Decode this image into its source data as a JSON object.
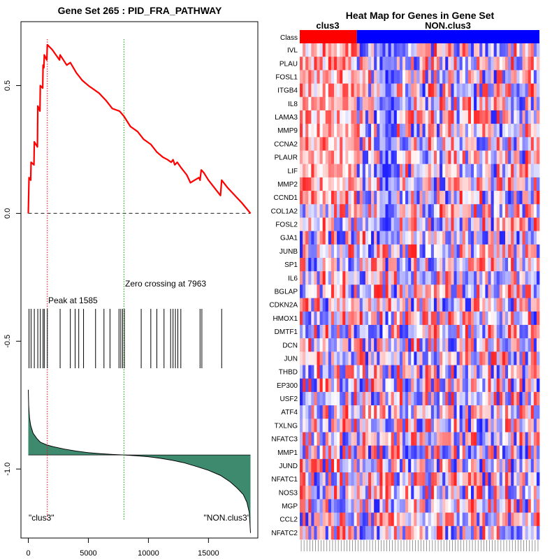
{
  "chart_data": [
    {
      "type": "line",
      "title": "Gene Set  265 : PID_FRA_PATHWAY",
      "xlim": [
        0,
        18500
      ],
      "ylim": [
        -1.27,
        0.75
      ],
      "x_ticks": [
        0,
        5000,
        10000,
        15000
      ],
      "x_tick_labels": [
        "0",
        "5000",
        "10000",
        "15000"
      ],
      "y_ticks": [
        0.5,
        0.0,
        -0.5,
        -1.0
      ],
      "y_tick_labels": [
        "0.5",
        "0.0",
        "-0.5",
        "-1.0"
      ],
      "running_es": {
        "x": [
          0,
          60,
          200,
          230,
          470,
          500,
          760,
          790,
          970,
          1000,
          1200,
          1230,
          1300,
          1330,
          1540,
          1585,
          2000,
          2600,
          2650,
          3200,
          3500,
          4000,
          4500,
          5000,
          5900,
          6500,
          7000,
          7600,
          7963,
          8500,
          9100,
          9600,
          10200,
          10700,
          11200,
          11600,
          11900,
          12050,
          12200,
          12400,
          12700,
          13200,
          13500,
          14200,
          14300,
          14400,
          14600,
          15000,
          15500,
          16000,
          16100,
          16600,
          17200,
          17800,
          18500
        ],
        "y": [
          0,
          0.14,
          0.13,
          0.2,
          0.19,
          0.28,
          0.26,
          0.42,
          0.4,
          0.5,
          0.49,
          0.58,
          0.57,
          0.62,
          0.6,
          0.66,
          0.64,
          0.6,
          0.62,
          0.58,
          0.59,
          0.55,
          0.52,
          0.5,
          0.47,
          0.44,
          0.41,
          0.4,
          0.38,
          0.34,
          0.32,
          0.29,
          0.27,
          0.24,
          0.22,
          0.21,
          0.2,
          0.21,
          0.19,
          0.2,
          0.18,
          0.15,
          0.12,
          0.14,
          0.13,
          0.17,
          0.16,
          0.13,
          0.1,
          0.07,
          0.13,
          0.1,
          0.07,
          0.04,
          0.0
        ]
      },
      "hit_positions": [
        60,
        230,
        500,
        790,
        1000,
        1230,
        1330,
        1585,
        2650,
        3500,
        3900,
        4200,
        4600,
        5600,
        6300,
        6800,
        7550,
        7700,
        7850,
        8000,
        9400,
        10200,
        10700,
        11300,
        11850,
        12050,
        12250,
        12450,
        12700,
        14300,
        14450,
        16100
      ],
      "ranked_metric_fill": "#3e8a6f",
      "ranked_metric": {
        "x": [
          0,
          30,
          100,
          200,
          400,
          700,
          1000,
          1500,
          2000,
          3000,
          4000,
          5000,
          6000,
          7000,
          7963,
          9000,
          10000,
          11000,
          12000,
          13000,
          14000,
          15000,
          16000,
          16800,
          17400,
          17900,
          18200,
          18400,
          18500
        ],
        "y": [
          -0.69,
          -0.75,
          -0.8,
          -0.83,
          -0.86,
          -0.88,
          -0.895,
          -0.905,
          -0.912,
          -0.922,
          -0.93,
          -0.936,
          -0.94,
          -0.943,
          -0.945,
          -0.948,
          -0.952,
          -0.958,
          -0.966,
          -0.976,
          -0.99,
          -1.005,
          -1.025,
          -1.05,
          -1.075,
          -1.1,
          -1.13,
          -1.17,
          -1.25
        ]
      },
      "baseline_y": -0.945,
      "peak": {
        "x": 1585,
        "label": "Peak at 1585",
        "color": "#ff0000"
      },
      "zero_crossing": {
        "x": 7963,
        "label": "Zero crossing at 7963",
        "color": "#00aa00"
      },
      "left_label": "\"clus3\"",
      "right_label": "\"NON.clus3\"",
      "line_color": "#ff0000"
    },
    {
      "type": "heatmap",
      "title": "Heat Map for Genes in Gene Set",
      "class_row_label": "Class",
      "groups": [
        {
          "name": "clus3",
          "color": "#ff0000",
          "n_samples": 20
        },
        {
          "name": "NON.clus3",
          "color": "#0000ff",
          "n_samples": 64
        }
      ],
      "genes": [
        "IVL",
        "PLAU",
        "FOSL1",
        "ITGB4",
        "IL8",
        "LAMA3",
        "MMP9",
        "CCNA2",
        "PLAUR",
        "LIF",
        "MMP2",
        "CCND1",
        "COL1A2",
        "FOSL2",
        "GJA1",
        "JUNB",
        "SP1",
        "IL6",
        "BGLAP",
        "CDKN2A",
        "HMOX1",
        "DMTF1",
        "DCN",
        "JUN",
        "THBD",
        "EP300",
        "USF2",
        "ATF4",
        "TXLNG",
        "NFATC3",
        "MMP1",
        "JUND",
        "NFATC1",
        "NOS3",
        "MGP",
        "CCL2",
        "NFATC2"
      ],
      "color_scale": {
        "low": "#0000ff",
        "mid": "#ffffff",
        "high": "#ff0000"
      }
    }
  ]
}
